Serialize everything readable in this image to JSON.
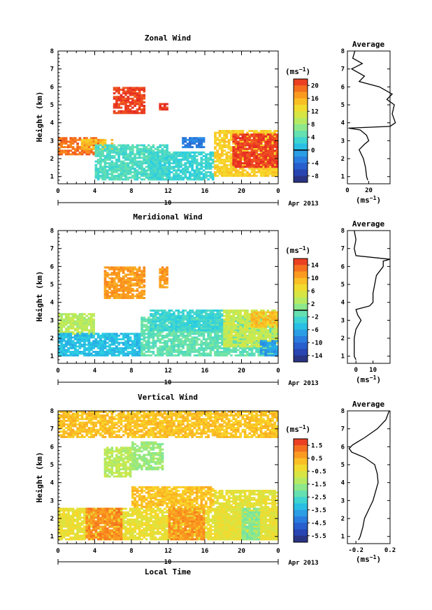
{
  "chart_data": [
    {
      "type": "heatmap",
      "title": "Zonal Wind",
      "ylabel": "Height (km)",
      "xlabel": "",
      "xlim": [
        0,
        24
      ],
      "ylim": [
        0.6,
        8
      ],
      "x_ticks": [
        "0",
        "4",
        "8",
        "12",
        "16",
        "20",
        "0"
      ],
      "y_ticks": [
        "1",
        "2",
        "3",
        "4",
        "5",
        "6",
        "7",
        "8"
      ],
      "date_bar_day": "10",
      "date_label": "Apr 2013",
      "colorbar": {
        "unit_prefix": "(ms",
        "unit_exp": "−1",
        "unit_suffix": ")",
        "range": [
          -10,
          22
        ],
        "ticks": [
          "20",
          "16",
          "12",
          "8",
          "4",
          "0",
          "-4",
          "-8"
        ],
        "zero_line": 0
      },
      "regions": [
        {
          "t": [
            0,
            4.5
          ],
          "h": [
            2.2,
            3.2
          ],
          "v": 19
        },
        {
          "t": [
            2.5,
            6
          ],
          "h": [
            2.5,
            3.1
          ],
          "v": 15
        },
        {
          "t": [
            4,
            12
          ],
          "h": [
            0.8,
            2.8
          ],
          "v": 4
        },
        {
          "t": [
            10,
            17
          ],
          "h": [
            0.8,
            2.4
          ],
          "v": 3
        },
        {
          "t": [
            6,
            9.5
          ],
          "h": [
            4.5,
            6.0
          ],
          "v": 21
        },
        {
          "t": [
            11,
            12
          ],
          "h": [
            4.7,
            5.1
          ],
          "v": 21
        },
        {
          "t": [
            13.5,
            16
          ],
          "h": [
            2.6,
            3.2
          ],
          "v": -3
        },
        {
          "t": [
            17,
            24
          ],
          "h": [
            1.0,
            3.6
          ],
          "v": 14
        },
        {
          "t": [
            19,
            24
          ],
          "h": [
            1.5,
            3.4
          ],
          "v": 21
        }
      ],
      "profile": {
        "title": "Average",
        "xlabel_prefix": "(ms",
        "xlabel_exp": "−1",
        "xlabel_suffix": ")",
        "xlim": [
          0,
          40
        ],
        "x_ticks": [
          "0",
          "20"
        ],
        "ylim": [
          0.6,
          8
        ],
        "y_ticks": [
          "1",
          "2",
          "3",
          "4",
          "5",
          "6",
          "7",
          "8"
        ],
        "h": [
          0.8,
          1.0,
          1.5,
          2.0,
          2.5,
          2.8,
          3.0,
          3.3,
          3.6,
          3.7,
          3.8,
          4.0,
          4.5,
          5.0,
          5.3,
          5.6,
          6.0,
          6.3,
          6.6,
          7.0,
          7.3,
          7.6,
          8.0
        ],
        "v": [
          19,
          18,
          17,
          15,
          11,
          16,
          20,
          18,
          12,
          1,
          40,
          45,
          42,
          44,
          37,
          42,
          30,
          11,
          16,
          4,
          14,
          5,
          7
        ]
      }
    },
    {
      "type": "heatmap",
      "title": "Meridional Wind",
      "ylabel": "Height (km)",
      "xlabel": "",
      "xlim": [
        0,
        24
      ],
      "ylim": [
        0.6,
        8
      ],
      "x_ticks": [
        "0",
        "4",
        "8",
        "12",
        "16",
        "20",
        "0"
      ],
      "y_ticks": [
        "1",
        "2",
        "3",
        "4",
        "5",
        "6",
        "7",
        "8"
      ],
      "date_bar_day": "10",
      "date_label": "Apr 2013",
      "colorbar": {
        "unit_prefix": "(ms",
        "unit_exp": "−1",
        "unit_suffix": ")",
        "range": [
          -16,
          16
        ],
        "ticks": [
          "14",
          "10",
          "6",
          "2",
          "-2",
          "-6",
          "-10",
          "-14"
        ],
        "zero_line": 0
      },
      "regions": [
        {
          "t": [
            0,
            4
          ],
          "h": [
            2.2,
            3.4
          ],
          "v": 3
        },
        {
          "t": [
            0,
            9
          ],
          "h": [
            1.0,
            2.3
          ],
          "v": -5
        },
        {
          "t": [
            9,
            24
          ],
          "h": [
            1.0,
            3.2
          ],
          "v": -1
        },
        {
          "t": [
            10,
            18
          ],
          "h": [
            2.4,
            3.6
          ],
          "v": -3
        },
        {
          "t": [
            18,
            24
          ],
          "h": [
            1.5,
            3.6
          ],
          "v": 4
        },
        {
          "t": [
            21,
            24
          ],
          "h": [
            2.6,
            3.5
          ],
          "v": 9
        },
        {
          "t": [
            5,
            9.5
          ],
          "h": [
            4.2,
            6.0
          ],
          "v": 11
        },
        {
          "t": [
            11,
            12
          ],
          "h": [
            4.8,
            6.0
          ],
          "v": 11
        },
        {
          "t": [
            22,
            24
          ],
          "h": [
            1.0,
            1.9
          ],
          "v": -7
        }
      ],
      "profile": {
        "title": "Average",
        "xlabel_prefix": "(ms",
        "xlabel_exp": "−1",
        "xlabel_suffix": ")",
        "xlim": [
          -5,
          20
        ],
        "x_ticks": [
          "0",
          "10"
        ],
        "ylim": [
          0.6,
          8
        ],
        "y_ticks": [
          "1",
          "2",
          "3",
          "4",
          "5",
          "6",
          "7",
          "8"
        ],
        "h": [
          0.8,
          1.0,
          1.5,
          2.0,
          2.5,
          3.0,
          3.3,
          3.6,
          3.8,
          4.0,
          4.5,
          5.0,
          5.5,
          6.0,
          6.3,
          6.4,
          6.6,
          7.0,
          7.5,
          8.0
        ],
        "v": [
          0,
          -1,
          -1,
          -1,
          0,
          3,
          1,
          0,
          8,
          10,
          10,
          11,
          12,
          16,
          16,
          20,
          0,
          -1,
          0,
          -1
        ]
      }
    },
    {
      "type": "heatmap",
      "title": "Vertical Wind",
      "ylabel": "Height (km)",
      "xlabel": "Local Time",
      "xlim": [
        0,
        24
      ],
      "ylim": [
        0.6,
        8
      ],
      "x_ticks": [
        "0",
        "4",
        "8",
        "12",
        "16",
        "20",
        "0"
      ],
      "y_ticks": [
        "1",
        "2",
        "3",
        "4",
        "5",
        "6",
        "7",
        "8"
      ],
      "date_bar_day": "10",
      "date_label": "Apr 2013",
      "colorbar": {
        "unit_prefix": "(ms",
        "unit_exp": "−1",
        "unit_suffix": ")",
        "range": [
          -6,
          2
        ],
        "ticks": [
          "1.5",
          "0.5",
          "-0.5",
          "-1.5",
          "-2.5",
          "-3.5",
          "-4.5",
          "-5.5"
        ],
        "zero_line": null
      },
      "regions": [
        {
          "t": [
            0,
            24
          ],
          "h": [
            0.8,
            2.6
          ],
          "v": -0.4
        },
        {
          "t": [
            17,
            24
          ],
          "h": [
            0.8,
            3.6
          ],
          "v": -0.5
        },
        {
          "t": [
            8,
            17
          ],
          "h": [
            2.6,
            3.8
          ],
          "v": 0.2
        },
        {
          "t": [
            5,
            8
          ],
          "h": [
            4.3,
            6.0
          ],
          "v": -1.2
        },
        {
          "t": [
            8,
            11.5
          ],
          "h": [
            4.7,
            6.3
          ],
          "v": -1.6
        },
        {
          "t": [
            3,
            7
          ],
          "h": [
            0.8,
            2.6
          ],
          "v": 0.9
        },
        {
          "t": [
            12,
            16
          ],
          "h": [
            0.8,
            2.6
          ],
          "v": 0.8
        },
        {
          "t": [
            20,
            22
          ],
          "h": [
            0.8,
            2.6
          ],
          "v": -1.8
        },
        {
          "t": [
            0,
            24
          ],
          "h": [
            6.5,
            8.0
          ],
          "v": 0.2
        }
      ],
      "profile": {
        "title": "Average",
        "xlabel_prefix": "(ms",
        "xlabel_exp": "−1",
        "xlabel_suffix": ")",
        "xlim": [
          -0.3,
          0.2
        ],
        "x_ticks": [
          "-0.2",
          "0.2"
        ],
        "ylim": [
          0.6,
          8
        ],
        "y_ticks": [
          "1",
          "2",
          "3",
          "4",
          "5",
          "6",
          "7",
          "8"
        ],
        "h": [
          0.8,
          1.0,
          1.5,
          2.0,
          2.5,
          3.0,
          3.5,
          4.0,
          4.5,
          5.0,
          5.4,
          5.7,
          5.9,
          6.1,
          6.5,
          7.0,
          7.5,
          8.0
        ],
        "v": [
          -0.17,
          -0.15,
          -0.12,
          -0.1,
          -0.05,
          0.0,
          0.03,
          0.06,
          0.05,
          0.02,
          -0.1,
          -0.25,
          -0.28,
          -0.24,
          -0.1,
          0.05,
          0.15,
          0.19
        ]
      }
    }
  ]
}
